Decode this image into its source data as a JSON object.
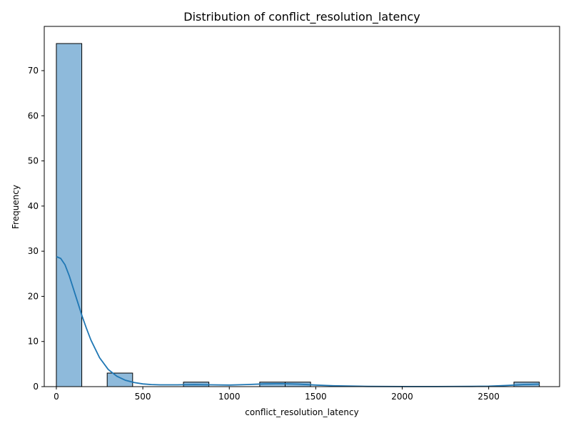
{
  "chart_data": {
    "type": "bar",
    "title": "Distribution of conflict_resolution_latency",
    "xlabel": "conflict_resolution_latency",
    "ylabel": "Frequency",
    "xlim": [
      -70,
      2910
    ],
    "ylim": [
      0,
      79.8
    ],
    "x_ticks": [
      0,
      500,
      1000,
      1500,
      2000,
      2500
    ],
    "y_ticks": [
      0,
      10,
      20,
      30,
      40,
      50,
      60,
      70
    ],
    "bins": [
      {
        "x0": 0,
        "x1": 147,
        "count": 76
      },
      {
        "x0": 147,
        "x1": 294,
        "count": 0
      },
      {
        "x0": 294,
        "x1": 441,
        "count": 3
      },
      {
        "x0": 441,
        "x1": 588,
        "count": 0
      },
      {
        "x0": 588,
        "x1": 735,
        "count": 0
      },
      {
        "x0": 735,
        "x1": 882,
        "count": 1
      },
      {
        "x0": 882,
        "x1": 1029,
        "count": 0
      },
      {
        "x0": 1029,
        "x1": 1176,
        "count": 0
      },
      {
        "x0": 1176,
        "x1": 1323,
        "count": 1
      },
      {
        "x0": 1323,
        "x1": 1470,
        "count": 1
      },
      {
        "x0": 1470,
        "x1": 1617,
        "count": 0
      },
      {
        "x0": 1617,
        "x1": 1764,
        "count": 0
      },
      {
        "x0": 1764,
        "x1": 1911,
        "count": 0
      },
      {
        "x0": 1911,
        "x1": 2058,
        "count": 0
      },
      {
        "x0": 2058,
        "x1": 2205,
        "count": 0
      },
      {
        "x0": 2205,
        "x1": 2352,
        "count": 0
      },
      {
        "x0": 2352,
        "x1": 2499,
        "count": 0
      },
      {
        "x0": 2499,
        "x1": 2646,
        "count": 0
      },
      {
        "x0": 2646,
        "x1": 2793,
        "count": 1
      }
    ],
    "kde": {
      "x": [
        0,
        25,
        50,
        75,
        100,
        125,
        150,
        175,
        200,
        250,
        300,
        350,
        400,
        450,
        500,
        550,
        600,
        700,
        800,
        900,
        1000,
        1100,
        1200,
        1300,
        1400,
        1500,
        1600,
        1800,
        2000,
        2200,
        2400,
        2500,
        2600,
        2700,
        2793
      ],
      "y": [
        28.8,
        28.4,
        27.0,
        24.5,
        21.5,
        18.5,
        15.5,
        12.8,
        10.3,
        6.4,
        3.8,
        2.3,
        1.4,
        0.9,
        0.6,
        0.45,
        0.4,
        0.4,
        0.45,
        0.4,
        0.35,
        0.45,
        0.6,
        0.65,
        0.55,
        0.35,
        0.2,
        0.05,
        0.02,
        0.02,
        0.05,
        0.1,
        0.25,
        0.45,
        0.55
      ]
    },
    "colors": {
      "bar_fill": "#8ebadb",
      "bar_edge": "#000000",
      "kde_line": "#1f77b4"
    },
    "grid": false,
    "legend": "none"
  }
}
